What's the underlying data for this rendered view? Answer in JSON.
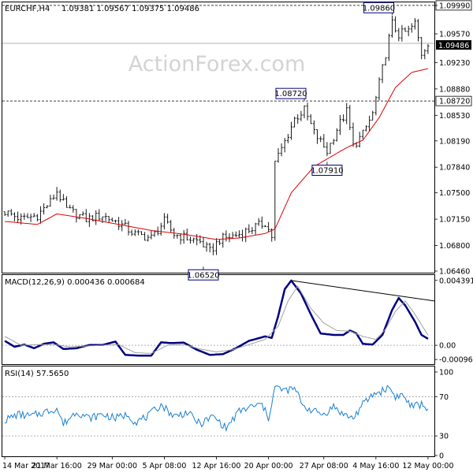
{
  "header": {
    "symbol": "EURCHF,H4",
    "ohlc": "1.09381 1.09567 1.09375 1.09486"
  },
  "watermark": "ActionForex.com",
  "colors": {
    "bars": "#1a1a1a",
    "ma": "#e00000",
    "macd": "#000080",
    "signal": "#a0a0a0",
    "trendline": "#000000",
    "rsi": "#1a7fd0",
    "grid": "#000000",
    "frame": "#000000",
    "label_border": "#000080"
  },
  "chart_data": [
    {
      "type": "candlestick",
      "title": "EURCHF,H4",
      "xlabel": "",
      "ylabel": "",
      "ylim": [
        1.0646,
        1.1002
      ],
      "y_ticks": [
        "1.09990",
        "1.09570",
        "1.09230",
        "1.08880",
        "1.08530",
        "1.08190",
        "1.07840",
        "1.07500",
        "1.07150",
        "1.06800",
        "1.06460"
      ],
      "x_tick_labels": [
        "14 Mar 2017",
        "21 Mar 16:00",
        "29 Mar 00:00",
        "5 Apr 08:00",
        "12 Apr 16:00",
        "20 Apr 00:00",
        "27 Apr 08:00",
        "4 May 16:00",
        "12 May 00:00"
      ],
      "levels": [
        {
          "value": 1.0999,
          "label": "1.09990",
          "style": "dashed"
        },
        {
          "value": 1.0872,
          "label": "1.08720",
          "style": "dashed"
        },
        {
          "value": 1.09486,
          "label": "1.09486",
          "style": "current-price"
        }
      ],
      "annotations": [
        {
          "text": "1.09860",
          "value": 1.0986,
          "bar": 119
        },
        {
          "text": "1.08720",
          "value": 1.0872,
          "bar": 92
        },
        {
          "text": "1.07910",
          "value": 1.0791,
          "bar": 99
        },
        {
          "text": "1.06520",
          "value": 1.0652,
          "bar": 61
        }
      ],
      "price_path": [
        [
          0,
          1.0725
        ],
        [
          5,
          1.0715
        ],
        [
          10,
          1.072
        ],
        [
          14,
          1.0738
        ],
        [
          16,
          1.0752
        ],
        [
          19,
          1.0728
        ],
        [
          25,
          1.0715
        ],
        [
          30,
          1.072
        ],
        [
          35,
          1.071
        ],
        [
          40,
          1.0695
        ],
        [
          45,
          1.069
        ],
        [
          49,
          1.0712
        ],
        [
          52,
          1.0695
        ],
        [
          56,
          1.069
        ],
        [
          60,
          1.0685
        ],
        [
          63,
          1.0672
        ],
        [
          66,
          1.0688
        ],
        [
          72,
          1.0695
        ],
        [
          77,
          1.0705
        ],
        [
          80,
          1.071
        ],
        [
          82,
          1.0692
        ],
        [
          83,
          1.079
        ],
        [
          86,
          1.0818
        ],
        [
          89,
          1.0848
        ],
        [
          92,
          1.086
        ],
        [
          95,
          1.083
        ],
        [
          99,
          1.0805
        ],
        [
          102,
          1.0835
        ],
        [
          105,
          1.0858
        ],
        [
          107,
          1.0812
        ],
        [
          110,
          1.0828
        ],
        [
          113,
          1.0855
        ],
        [
          115,
          1.0895
        ],
        [
          117,
          1.0935
        ],
        [
          119,
          1.0975
        ],
        [
          121,
          1.096
        ],
        [
          124,
          1.0965
        ],
        [
          126,
          1.0975
        ],
        [
          128,
          1.0935
        ],
        [
          130,
          1.095
        ]
      ],
      "ma_path": [
        [
          0,
          1.0712
        ],
        [
          10,
          1.0708
        ],
        [
          16,
          1.0722
        ],
        [
          25,
          1.0716
        ],
        [
          35,
          1.0708
        ],
        [
          45,
          1.07
        ],
        [
          55,
          1.0695
        ],
        [
          65,
          1.0688
        ],
        [
          72,
          1.069
        ],
        [
          80,
          1.0696
        ],
        [
          83,
          1.0702
        ],
        [
          88,
          1.075
        ],
        [
          95,
          1.0785
        ],
        [
          105,
          1.081
        ],
        [
          110,
          1.082
        ],
        [
          115,
          1.085
        ],
        [
          120,
          1.089
        ],
        [
          125,
          1.091
        ],
        [
          130,
          1.0915
        ]
      ],
      "bar_count": 131
    },
    {
      "type": "line",
      "title": "MACD(12,26,9) 0.000436 0.000684",
      "xlabel": "",
      "ylabel": "",
      "ylim": [
        -0.00122,
        0.0047
      ],
      "y_ticks": [
        "0.004391",
        "0.00",
        "-0.000961"
      ],
      "series": [
        {
          "name": "MACD",
          "points": [
            [
              0,
              0.0003
            ],
            [
              3,
              -0.0001
            ],
            [
              6,
              5e-05
            ],
            [
              9,
              -0.0002
            ],
            [
              12,
              0.0001
            ],
            [
              15,
              0.0002
            ],
            [
              18,
              -0.00025
            ],
            [
              22,
              -0.0002
            ],
            [
              26,
              2e-05
            ],
            [
              30,
              2e-05
            ],
            [
              34,
              0.00025
            ],
            [
              37,
              -0.00065
            ],
            [
              41,
              -0.0007
            ],
            [
              45,
              -0.0007
            ],
            [
              48,
              0.0002
            ],
            [
              51,
              0.00015
            ],
            [
              55,
              0.00018
            ],
            [
              59,
              -0.0003
            ],
            [
              63,
              -0.00065
            ],
            [
              67,
              -0.0006
            ],
            [
              71,
              -0.0002
            ],
            [
              75,
              0.0003
            ],
            [
              80,
              0.0006
            ],
            [
              82,
              0.0005
            ],
            [
              84,
              0.002
            ],
            [
              86,
              0.0038
            ],
            [
              88,
              0.00438
            ],
            [
              91,
              0.0035
            ],
            [
              94,
              0.0021
            ],
            [
              97,
              0.0008
            ],
            [
              101,
              0.0007
            ],
            [
              104,
              0.0007
            ],
            [
              106,
              0.001
            ],
            [
              108,
              0.0008
            ],
            [
              110,
              0.0001
            ],
            [
              113,
              5e-05
            ],
            [
              116,
              0.0007
            ],
            [
              119,
              0.0024
            ],
            [
              121,
              0.0032
            ],
            [
              123,
              0.0027
            ],
            [
              126,
              0.0016
            ],
            [
              128,
              0.0007
            ],
            [
              130,
              0.00044
            ]
          ]
        },
        {
          "name": "Signal",
          "points": [
            [
              0,
              0.0006
            ],
            [
              5,
              0.0
            ],
            [
              10,
              5e-05
            ],
            [
              15,
              5e-05
            ],
            [
              20,
              -0.0001
            ],
            [
              25,
              -5e-05
            ],
            [
              30,
              0.0
            ],
            [
              35,
              5e-05
            ],
            [
              40,
              -0.0005
            ],
            [
              45,
              -0.00055
            ],
            [
              50,
              0.0
            ],
            [
              55,
              5e-05
            ],
            [
              60,
              -0.00025
            ],
            [
              65,
              -0.00045
            ],
            [
              70,
              -0.0003
            ],
            [
              75,
              5e-05
            ],
            [
              80,
              0.0004
            ],
            [
              84,
              0.0013
            ],
            [
              87,
              0.003
            ],
            [
              90,
              0.004
            ],
            [
              94,
              0.0025
            ],
            [
              98,
              0.0015
            ],
            [
              102,
              0.001
            ],
            [
              106,
              0.00095
            ],
            [
              110,
              0.0006
            ],
            [
              114,
              0.0004
            ],
            [
              117,
              0.0011
            ],
            [
              120,
              0.0023
            ],
            [
              123,
              0.003
            ],
            [
              126,
              0.0021
            ],
            [
              130,
              0.00068
            ]
          ]
        },
        {
          "name": "Trendline",
          "points": [
            [
              88,
              0.00438
            ],
            [
              130,
              0.003
            ]
          ]
        }
      ]
    },
    {
      "type": "line",
      "title": "RSI(14) 57.5650",
      "xlabel": "",
      "ylabel": "",
      "ylim": [
        10,
        100
      ],
      "y_ticks": [
        "100",
        "70",
        "30",
        "0"
      ],
      "grid_levels": [
        70,
        30
      ],
      "series": [
        {
          "name": "RSI",
          "points": [
            [
              0,
              46
            ],
            [
              4,
              52
            ],
            [
              8,
              50
            ],
            [
              12,
              54
            ],
            [
              16,
              58
            ],
            [
              18,
              42
            ],
            [
              22,
              55
            ],
            [
              26,
              48
            ],
            [
              30,
              52
            ],
            [
              34,
              48
            ],
            [
              38,
              52
            ],
            [
              40,
              44
            ],
            [
              44,
              50
            ],
            [
              48,
              62
            ],
            [
              52,
              50
            ],
            [
              56,
              54
            ],
            [
              60,
              42
            ],
            [
              64,
              50
            ],
            [
              68,
              38
            ],
            [
              72,
              55
            ],
            [
              76,
              60
            ],
            [
              79,
              62
            ],
            [
              81,
              48
            ],
            [
              83,
              80
            ],
            [
              86,
              76
            ],
            [
              89,
              78
            ],
            [
              92,
              60
            ],
            [
              95,
              55
            ],
            [
              98,
              52
            ],
            [
              101,
              60
            ],
            [
              104,
              52
            ],
            [
              107,
              48
            ],
            [
              110,
              62
            ],
            [
              113,
              72
            ],
            [
              116,
              76
            ],
            [
              118,
              80
            ],
            [
              120,
              70
            ],
            [
              122,
              72
            ],
            [
              125,
              60
            ],
            [
              128,
              62
            ],
            [
              130,
              57.57
            ]
          ]
        }
      ]
    }
  ]
}
